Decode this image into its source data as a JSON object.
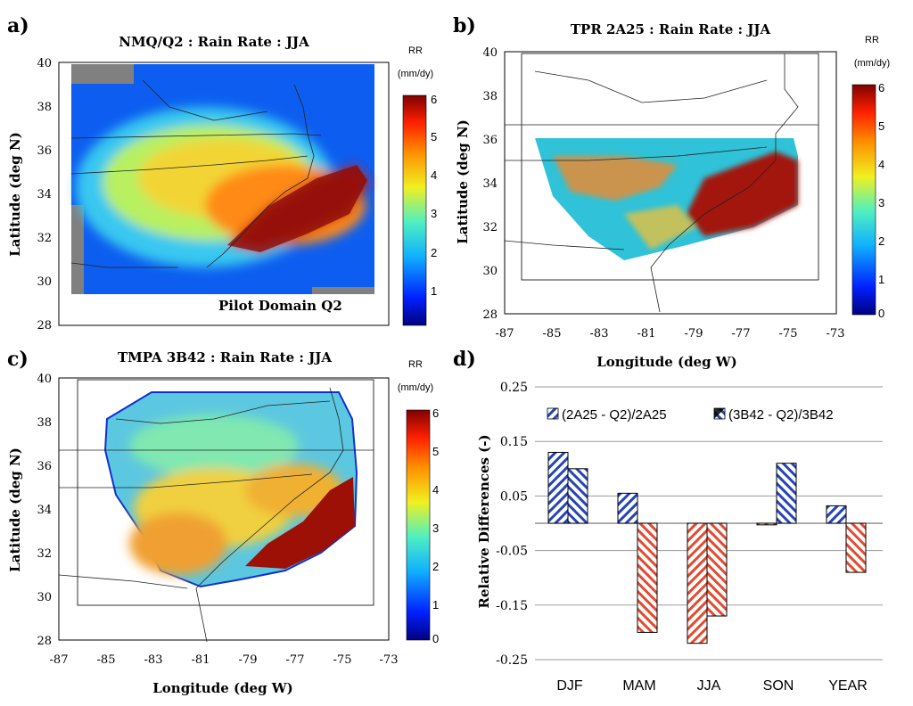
{
  "panels": [
    {
      "letter": "a)",
      "title": "NMQ/Q2 : Rain Rate : JJA",
      "ylabel": "Latitude (deg N)",
      "xlabel": "",
      "yticks": [
        "40",
        "38",
        "36",
        "34",
        "32",
        "30",
        "28"
      ],
      "xticks": [],
      "annotation": "Pilot Domain Q2",
      "cbar_title": [
        "RR",
        "(mm/dy)"
      ],
      "cbar_ticks": [
        "6",
        "5",
        "4",
        "3",
        "2",
        "1"
      ],
      "colors": {
        "ocean": "#c0261b",
        "land": "#3da8e6",
        "mid": "#f2d534"
      }
    },
    {
      "letter": "b)",
      "title": "TPR 2A25 : Rain Rate : JJA",
      "ylabel": "Latitude (deg N)",
      "xlabel": "Longitude (deg W)",
      "yticks": [
        "40",
        "38",
        "36",
        "34",
        "32",
        "30",
        "28"
      ],
      "xticks": [
        "-87",
        "-85",
        "-83",
        "-81",
        "-79",
        "-77",
        "-75",
        "-73"
      ],
      "annotation": "",
      "cbar_title": [
        "RR",
        "(mm/dy)"
      ],
      "cbar_ticks": [
        "6",
        "5",
        "4",
        "3",
        "2",
        "1",
        "0"
      ],
      "colors": {
        "ocean": "#a3170f",
        "land": "#2fc2d8",
        "mid": "#f08a2a"
      }
    },
    {
      "letter": "c)",
      "title": "TMPA 3B42 : Rain Rate : JJA",
      "ylabel": "Latitude (deg N)",
      "xlabel": "Longitude (deg W)",
      "yticks": [
        "40",
        "38",
        "36",
        "34",
        "32",
        "30",
        "28"
      ],
      "xticks": [
        "-87",
        "-85",
        "-83",
        "-81",
        "-79",
        "-77",
        "-75",
        "-73"
      ],
      "annotation": "",
      "cbar_title": [
        "RR",
        "(mm/dy)"
      ],
      "cbar_ticks": [
        "6",
        "5",
        "4",
        "3",
        "2",
        "1",
        "0"
      ],
      "colors": {
        "ocean": "#9c1006",
        "land": "#5cc7e0",
        "mid": "#f0b030"
      }
    }
  ],
  "colorbar_range_mm_per_day": [
    0,
    6
  ],
  "chart_data": {
    "letter": "d)",
    "type": "bar",
    "categories": [
      "DJF",
      "MAM",
      "JJA",
      "SON",
      "YEAR"
    ],
    "series": [
      {
        "name": "(2A25 - Q2)/2A25",
        "values": [
          0.13,
          0.055,
          -0.22,
          -0.003,
          0.032
        ],
        "pattern": "blue-hatch-left"
      },
      {
        "name": "(3B42 - Q2)/3B42",
        "values": [
          0.1,
          -0.2,
          -0.17,
          0.11,
          -0.09
        ],
        "pattern": "hatch-right-signed"
      }
    ],
    "ylabel": "Relative Differences  (-)",
    "ylim": [
      -0.25,
      0.25
    ],
    "yticks": [
      "0.25",
      "0.15",
      "0.05",
      "-0.05",
      "-0.15",
      "-0.25"
    ],
    "grid": true,
    "legend_position": "top",
    "colors": {
      "positive": "#2444b8",
      "negative": "#e34a2f"
    }
  }
}
